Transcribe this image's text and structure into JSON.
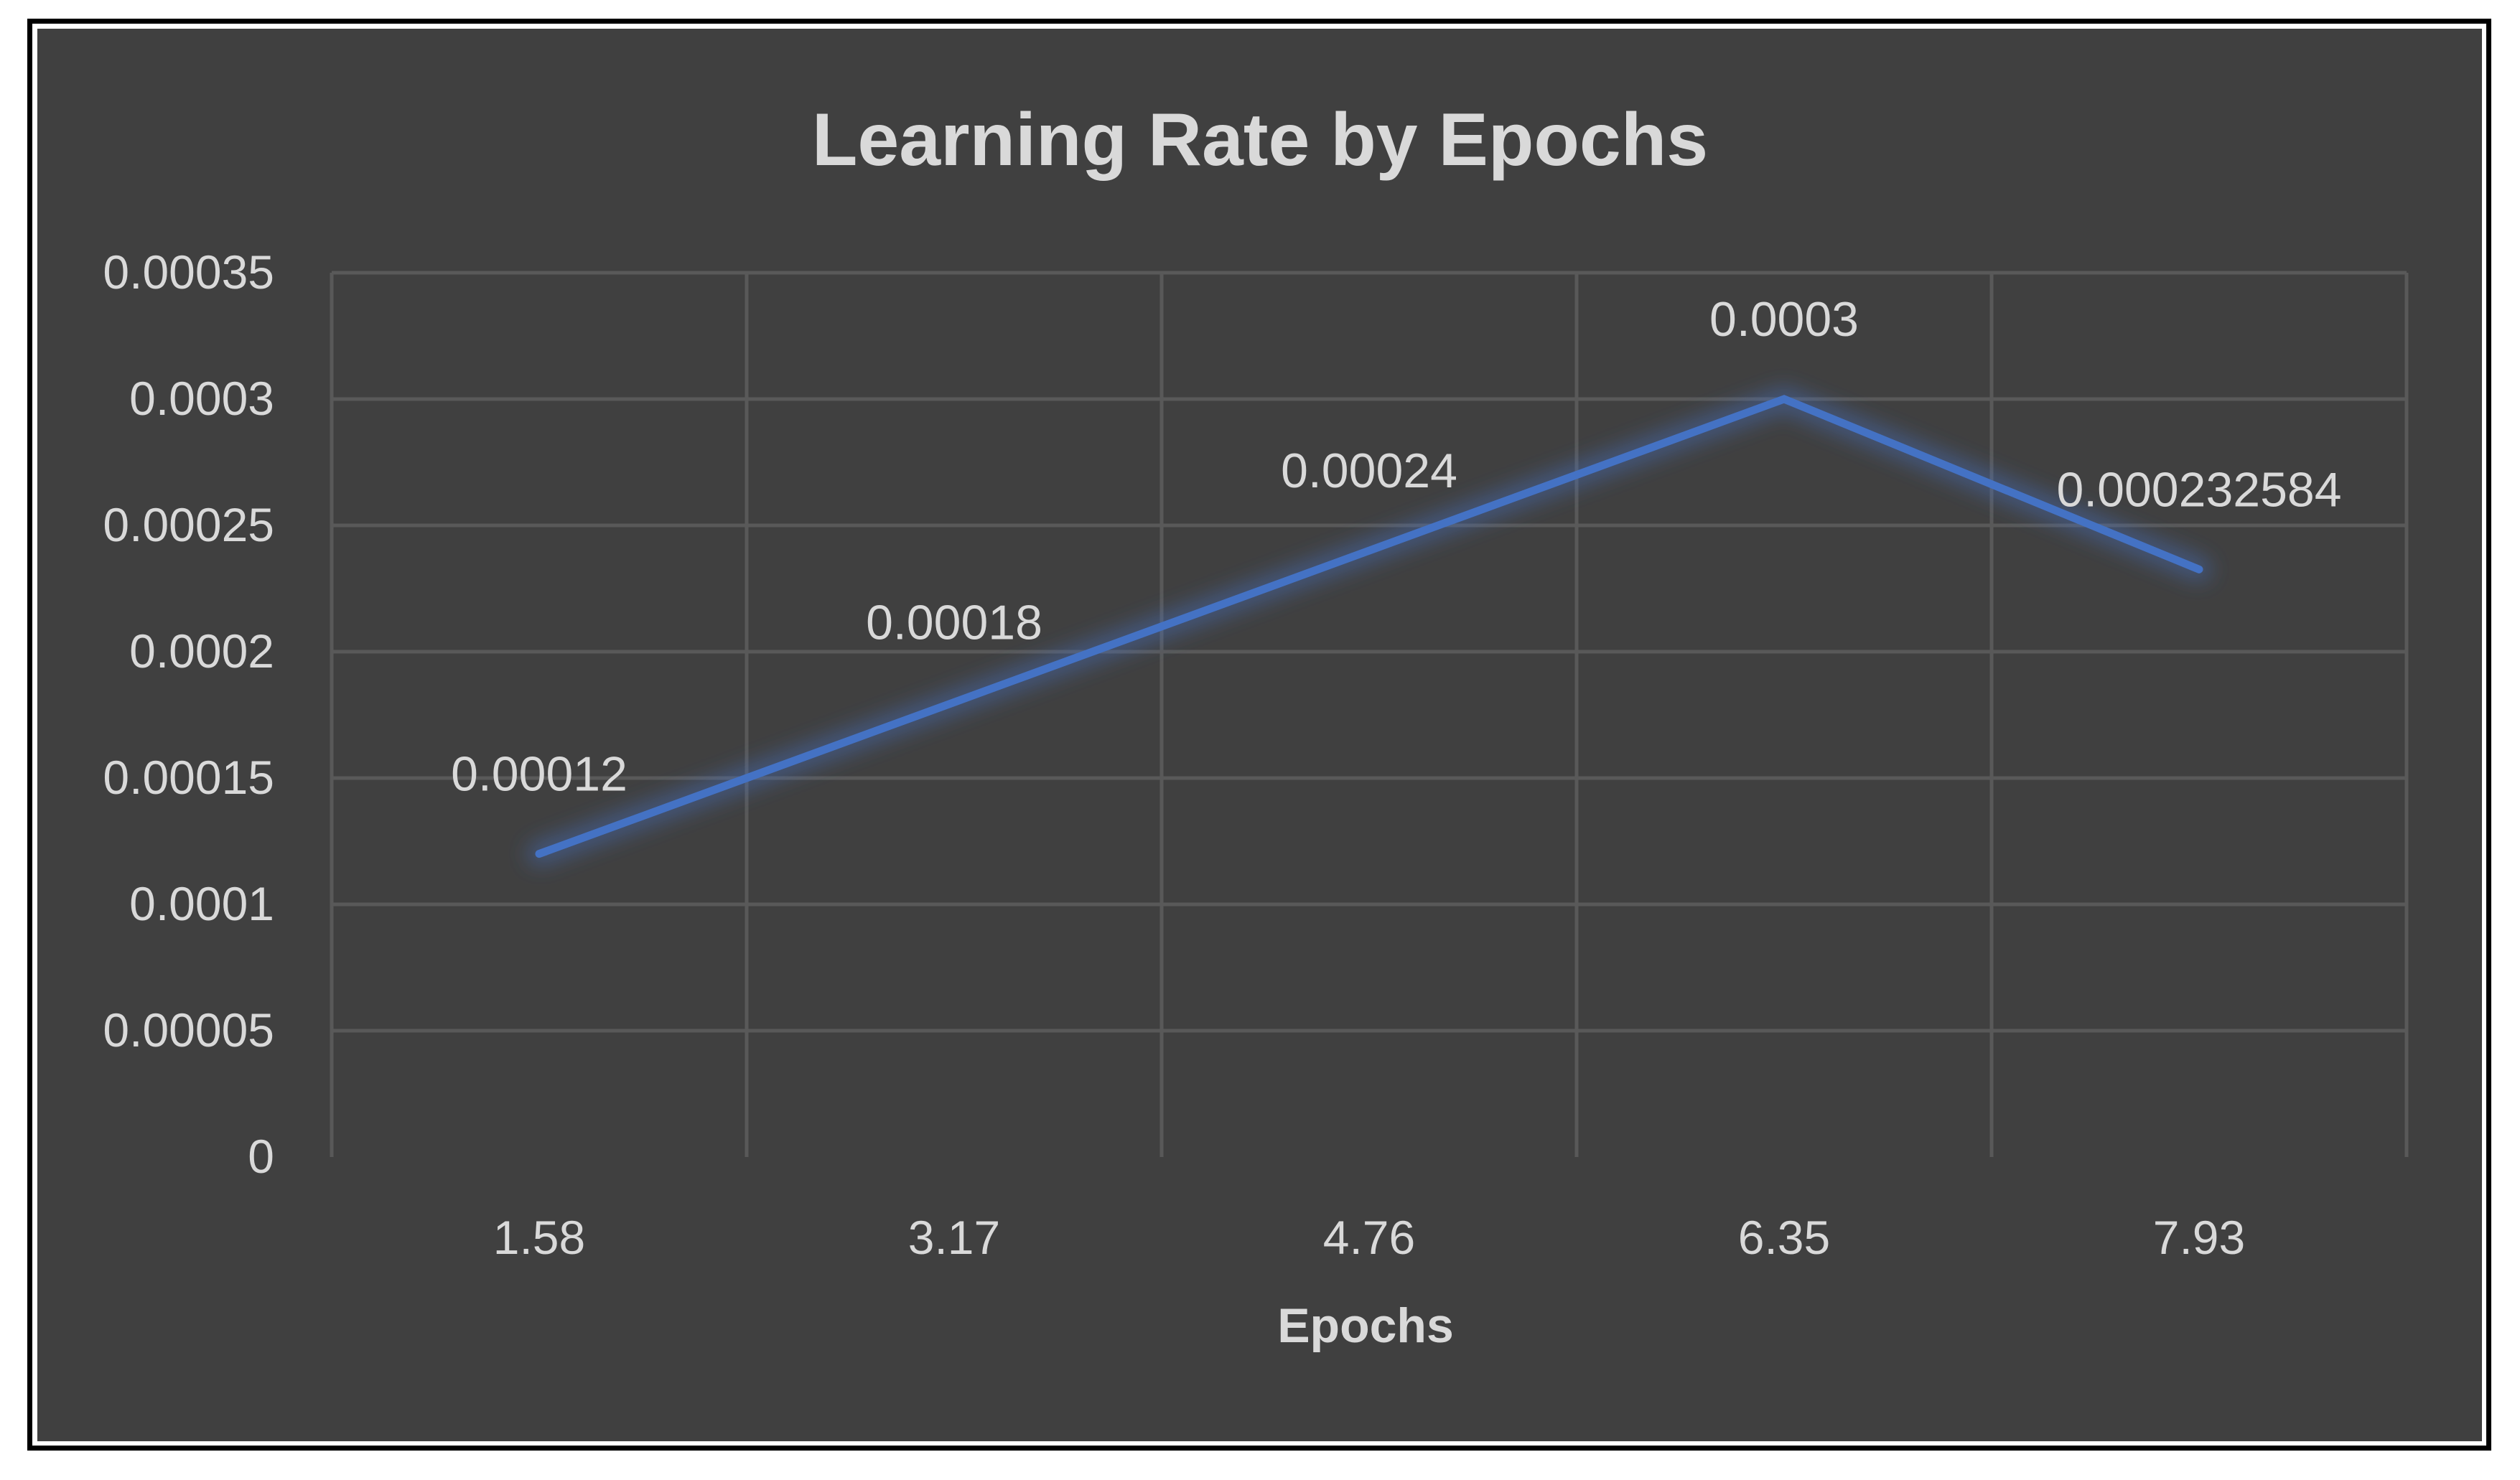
{
  "chart_data": {
    "type": "line",
    "title": "Learning Rate by Epochs",
    "xlabel": "Epochs",
    "ylabel": "",
    "categories": [
      "1.58",
      "3.17",
      "4.76",
      "6.35",
      "7.93"
    ],
    "series": [
      {
        "values": [
          0.00012,
          0.00018,
          0.00024,
          0.0003,
          0.000232584
        ],
        "data_labels": [
          "0.00012",
          "0.00018",
          "0.00024",
          "0.0003",
          "0.000232584"
        ],
        "color": "#4472c4"
      }
    ],
    "ylim": [
      0,
      0.00035
    ],
    "yticks": [
      0,
      5e-05,
      0.0001,
      0.00015,
      0.0002,
      0.00025,
      0.0003,
      0.00035
    ],
    "ytick_labels": [
      "0",
      "0.00005",
      "0.0001",
      "0.00015",
      "0.0002",
      "0.00025",
      "0.0003",
      "0.00035"
    ],
    "grid": true,
    "legend": "none",
    "colors": {
      "background": "#404040",
      "grid": "#595959",
      "text": "#d9d9d9",
      "line": "#4472c4"
    }
  }
}
